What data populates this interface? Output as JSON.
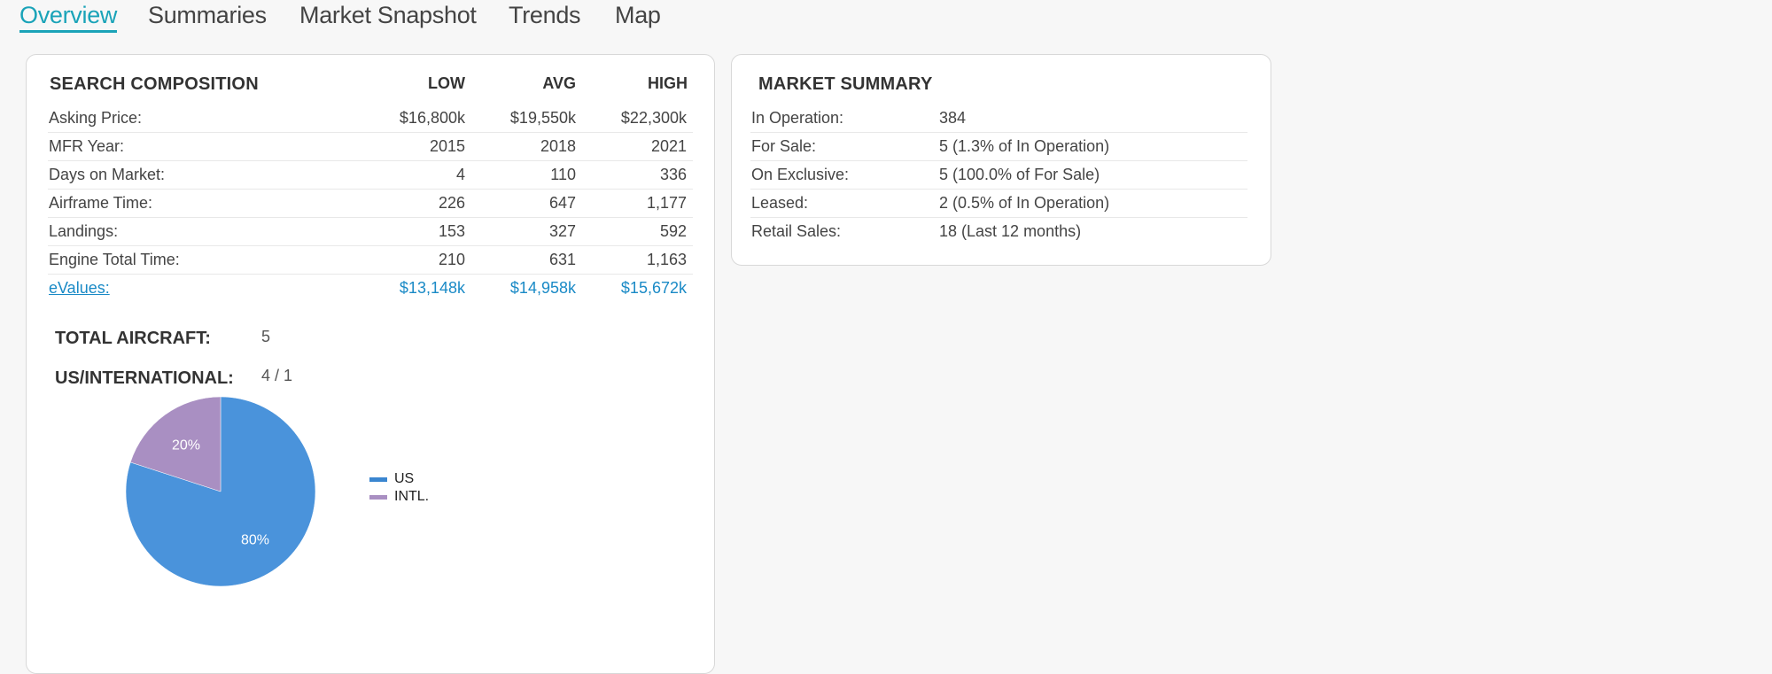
{
  "tabs": [
    {
      "label": "Overview",
      "active": true
    },
    {
      "label": "Summaries"
    },
    {
      "label": "Market Snapshot"
    },
    {
      "label": "Trends"
    },
    {
      "label": "Map"
    }
  ],
  "search_composition": {
    "title": "SEARCH COMPOSITION",
    "columns": [
      "LOW",
      "AVG",
      "HIGH"
    ],
    "rows": [
      {
        "label": "Asking Price:",
        "values": [
          "$16,800k",
          "$19,550k",
          "$22,300k"
        ]
      },
      {
        "label": "MFR Year:",
        "values": [
          "2015",
          "2018",
          "2021"
        ]
      },
      {
        "label": "Days on Market:",
        "values": [
          "4",
          "110",
          "336"
        ]
      },
      {
        "label": "Airframe Time:",
        "values": [
          "226",
          "647",
          "1,177"
        ]
      },
      {
        "label": "Landings:",
        "values": [
          "153",
          "327",
          "592"
        ]
      },
      {
        "label": "Engine Total Time:",
        "values": [
          "210",
          "631",
          "1,163"
        ]
      },
      {
        "label": "eValues:",
        "values": [
          "$13,148k",
          "$14,958k",
          "$15,672k"
        ]
      }
    ],
    "total_aircraft_label": "TOTAL AIRCRAFT:",
    "total_aircraft": "5",
    "us_intl_label": "US/INTERNATIONAL:",
    "us_intl": "4 / 1"
  },
  "chart_data": {
    "type": "pie",
    "categories": [
      "US",
      "INTL."
    ],
    "values": [
      80,
      20
    ],
    "labels": [
      "80%",
      "20%"
    ],
    "colors": [
      "#4a93db",
      "#a98fc2"
    ],
    "legend": "right"
  },
  "market_summary": {
    "title": "MARKET SUMMARY",
    "rows": [
      {
        "label": "In Operation:",
        "value": "384"
      },
      {
        "label": "For Sale:",
        "value": "5 (1.3% of In Operation)"
      },
      {
        "label": "On Exclusive:",
        "value": "5 (100.0% of For Sale)"
      },
      {
        "label": "Leased:",
        "value": "2 (0.5% of In Operation)"
      },
      {
        "label": "Retail Sales:",
        "value": "18 (Last 12 months)"
      }
    ]
  },
  "colors": {
    "accent": "#1aa3b8",
    "link": "#1a8ac6"
  }
}
